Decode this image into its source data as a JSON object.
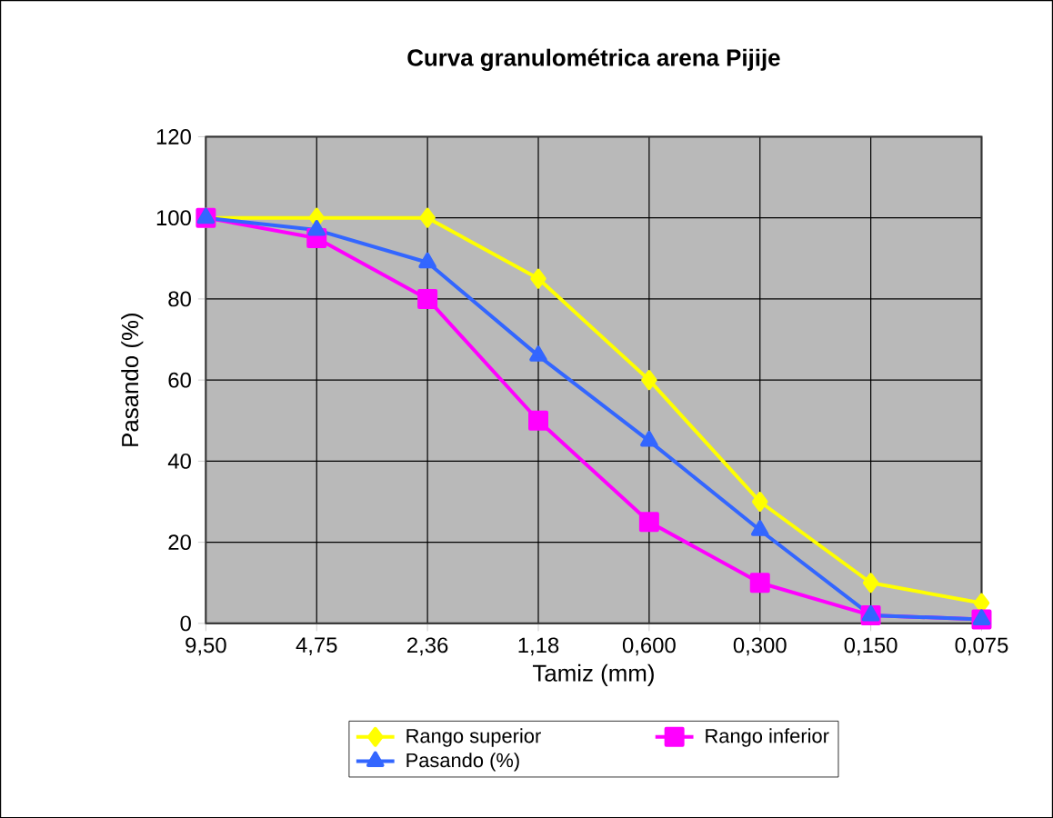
{
  "chart_data": {
    "type": "line",
    "title": "Curva granulométrica arena Pijije",
    "xlabel": "Tamiz (mm)",
    "ylabel": "Pasando (%)",
    "categories": [
      "9,50",
      "4,75",
      "2,36",
      "1,18",
      "0,600",
      "0,300",
      "0,150",
      "0,075"
    ],
    "series": [
      {
        "name": "Rango superior",
        "color": "#ffff00",
        "marker": "diamond",
        "values": [
          100,
          100,
          100,
          85,
          60,
          30,
          10,
          5
        ]
      },
      {
        "name": "Rango inferior",
        "color": "#ff00ff",
        "marker": "square",
        "values": [
          100,
          95,
          80,
          50,
          25,
          10,
          2,
          1
        ]
      },
      {
        "name": "Pasando (%)",
        "color": "#3366ff",
        "marker": "triangle",
        "values": [
          100,
          97,
          89,
          66,
          45,
          23,
          2,
          1
        ]
      }
    ],
    "ylim": [
      0,
      120
    ],
    "yticks": [
      0,
      20,
      40,
      60,
      80,
      100,
      120
    ],
    "grid": true,
    "legend": "bottom"
  }
}
